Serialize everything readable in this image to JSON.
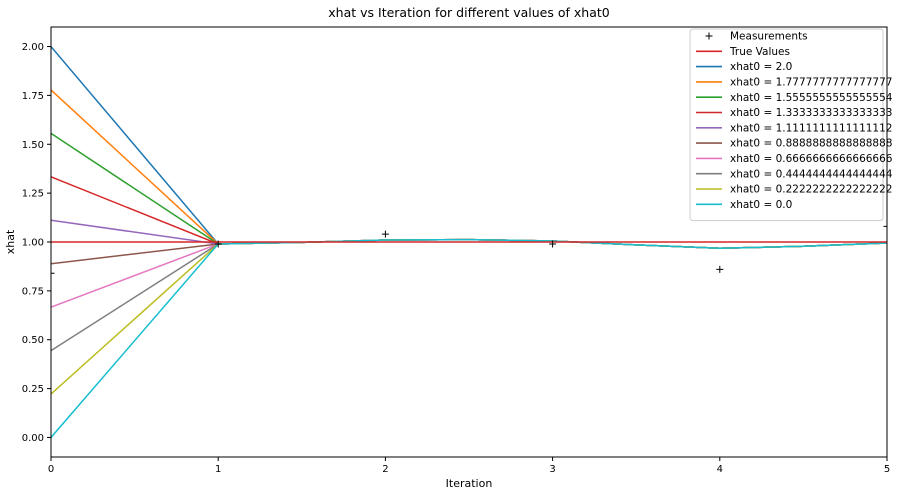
{
  "chart_data": {
    "type": "line",
    "title": "xhat vs Iteration for different values of xhat0",
    "xlabel": "Iteration",
    "ylabel": "xhat",
    "xlim": [
      0,
      5
    ],
    "ylim": [
      -0.1,
      2.1
    ],
    "xticks": [
      0,
      1,
      2,
      3,
      4,
      5
    ],
    "xtick_labels": [
      "0",
      "1",
      "2",
      "3",
      "4",
      "5"
    ],
    "yticks": [
      0.0,
      0.25,
      0.5,
      0.75,
      1.0,
      1.25,
      1.5,
      1.75,
      2.0
    ],
    "ytick_labels": [
      "0.00",
      "0.25",
      "0.50",
      "0.75",
      "1.00",
      "1.25",
      "1.50",
      "1.75",
      "2.00"
    ],
    "grid": false,
    "legend_position": "top-right",
    "measurements": {
      "name": "Measurements",
      "color": "#000000",
      "x": [
        0,
        1,
        2,
        3,
        4,
        5
      ],
      "y": [
        0.84,
        0.99,
        1.04,
        0.99,
        0.86,
        1.08
      ]
    },
    "true_values": {
      "name": "True Values",
      "color": "#d62728",
      "x": [
        0,
        1,
        2,
        3,
        4,
        5
      ],
      "y": [
        1.0,
        1.0,
        1.0,
        1.0,
        1.0,
        1.0
      ]
    },
    "series": [
      {
        "name": "xhat0 = 2.0",
        "color": "#1f77b4",
        "x": [
          0,
          1,
          1.5,
          2,
          2.5,
          3,
          3.5,
          4,
          4.5,
          5
        ],
        "y": [
          2.0,
          0.99,
          0.998,
          1.01,
          1.012,
          1.005,
          0.985,
          0.968,
          0.978,
          0.995
        ]
      },
      {
        "name": "xhat0 = 1.7777777777777777",
        "color": "#ff7f0e",
        "x": [
          0,
          1,
          1.5,
          2,
          2.5,
          3,
          3.5,
          4,
          4.5,
          5
        ],
        "y": [
          1.7777777777777777,
          0.99,
          0.998,
          1.01,
          1.012,
          1.005,
          0.985,
          0.968,
          0.978,
          0.995
        ]
      },
      {
        "name": "xhat0 = 1.5555555555555554",
        "color": "#2ca02c",
        "x": [
          0,
          1,
          1.5,
          2,
          2.5,
          3,
          3.5,
          4,
          4.5,
          5
        ],
        "y": [
          1.5555555555555554,
          0.99,
          0.998,
          1.01,
          1.012,
          1.005,
          0.985,
          0.968,
          0.978,
          0.995
        ]
      },
      {
        "name": "xhat0 = 1.3333333333333333",
        "color": "#d62728",
        "x": [
          0,
          1,
          1.5,
          2,
          2.5,
          3,
          3.5,
          4,
          4.5,
          5
        ],
        "y": [
          1.3333333333333333,
          0.99,
          0.998,
          1.01,
          1.012,
          1.005,
          0.985,
          0.968,
          0.978,
          0.995
        ]
      },
      {
        "name": "xhat0 = 1.1111111111111112",
        "color": "#9467bd",
        "x": [
          0,
          1,
          1.5,
          2,
          2.5,
          3,
          3.5,
          4,
          4.5,
          5
        ],
        "y": [
          1.1111111111111112,
          0.99,
          0.998,
          1.01,
          1.012,
          1.005,
          0.985,
          0.968,
          0.978,
          0.995
        ]
      },
      {
        "name": "xhat0 = 0.8888888888888888",
        "color": "#8c564b",
        "x": [
          0,
          1,
          1.5,
          2,
          2.5,
          3,
          3.5,
          4,
          4.5,
          5
        ],
        "y": [
          0.8888888888888888,
          0.99,
          0.998,
          1.01,
          1.012,
          1.005,
          0.985,
          0.968,
          0.978,
          0.995
        ]
      },
      {
        "name": "xhat0 = 0.6666666666666666",
        "color": "#e377c2",
        "x": [
          0,
          1,
          1.5,
          2,
          2.5,
          3,
          3.5,
          4,
          4.5,
          5
        ],
        "y": [
          0.6666666666666666,
          0.99,
          0.998,
          1.01,
          1.012,
          1.005,
          0.985,
          0.968,
          0.978,
          0.995
        ]
      },
      {
        "name": "xhat0 = 0.4444444444444444",
        "color": "#7f7f7f",
        "x": [
          0,
          1,
          1.5,
          2,
          2.5,
          3,
          3.5,
          4,
          4.5,
          5
        ],
        "y": [
          0.4444444444444444,
          0.99,
          0.998,
          1.01,
          1.012,
          1.005,
          0.985,
          0.968,
          0.978,
          0.995
        ]
      },
      {
        "name": "xhat0 = 0.2222222222222222",
        "color": "#bcbd22",
        "x": [
          0,
          1,
          1.5,
          2,
          2.5,
          3,
          3.5,
          4,
          4.5,
          5
        ],
        "y": [
          0.2222222222222222,
          0.99,
          0.998,
          1.01,
          1.012,
          1.005,
          0.985,
          0.968,
          0.978,
          0.995
        ]
      },
      {
        "name": "xhat0 = 0.0",
        "color": "#17becf",
        "x": [
          0,
          1,
          1.5,
          2,
          2.5,
          3,
          3.5,
          4,
          4.5,
          5
        ],
        "y": [
          0.0,
          0.99,
          0.998,
          1.01,
          1.012,
          1.005,
          0.985,
          0.968,
          0.978,
          0.995
        ]
      }
    ]
  }
}
